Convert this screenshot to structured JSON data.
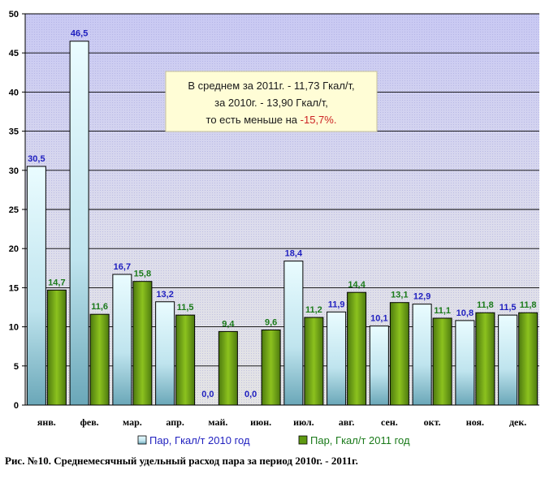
{
  "chart_data": {
    "type": "bar",
    "categories": [
      "янв.",
      "фев.",
      "мар.",
      "апр.",
      "май.",
      "июн.",
      "июл.",
      "авг.",
      "сен.",
      "окт.",
      "ноя.",
      "дек."
    ],
    "series": [
      {
        "name": "Пар, Гкал/т 2010 год",
        "values": [
          30.5,
          46.5,
          16.7,
          13.2,
          0.0,
          0.0,
          18.4,
          11.9,
          10.1,
          12.9,
          10.8,
          11.5
        ],
        "labels": [
          "30,5",
          "46,5",
          "16,7",
          "13,2",
          "0,0",
          "0,0",
          "18,4",
          "11,9",
          "10,1",
          "12,9",
          "10,8",
          "11,5"
        ]
      },
      {
        "name": "Пар, Гкал/т 2011 год",
        "values": [
          14.7,
          11.6,
          15.8,
          11.5,
          9.4,
          9.6,
          11.2,
          14.4,
          13.1,
          11.1,
          11.8,
          11.8
        ],
        "labels": [
          "14,7",
          "11,6",
          "15,8",
          "11,5",
          "9,4",
          "9,6",
          "11,2",
          "14,4",
          "13,1",
          "11,1",
          "11,8",
          "11,8"
        ]
      }
    ],
    "yticks": [
      "0",
      "5",
      "10",
      "15",
      "20",
      "25",
      "30",
      "35",
      "40",
      "45",
      "50"
    ],
    "ylim": [
      0,
      50
    ],
    "grid": true,
    "legend_position": "bottom",
    "annotation": {
      "line1": "В среднем за 2011г. - 11,73 Гкал/т,",
      "line2": "за 2010г. - 13,90 Гкал/т,",
      "line3_prefix": "то есть меньше на ",
      "line3_highlight": "-15,7%."
    },
    "colors": {
      "series1_label": "#1f1fbf",
      "series2_label": "#1a7a1a",
      "highlight": "#cc2222"
    }
  },
  "caption": "Рис. №10. Среднемесячный удельный расход пара за период 2010г. - 2011г."
}
